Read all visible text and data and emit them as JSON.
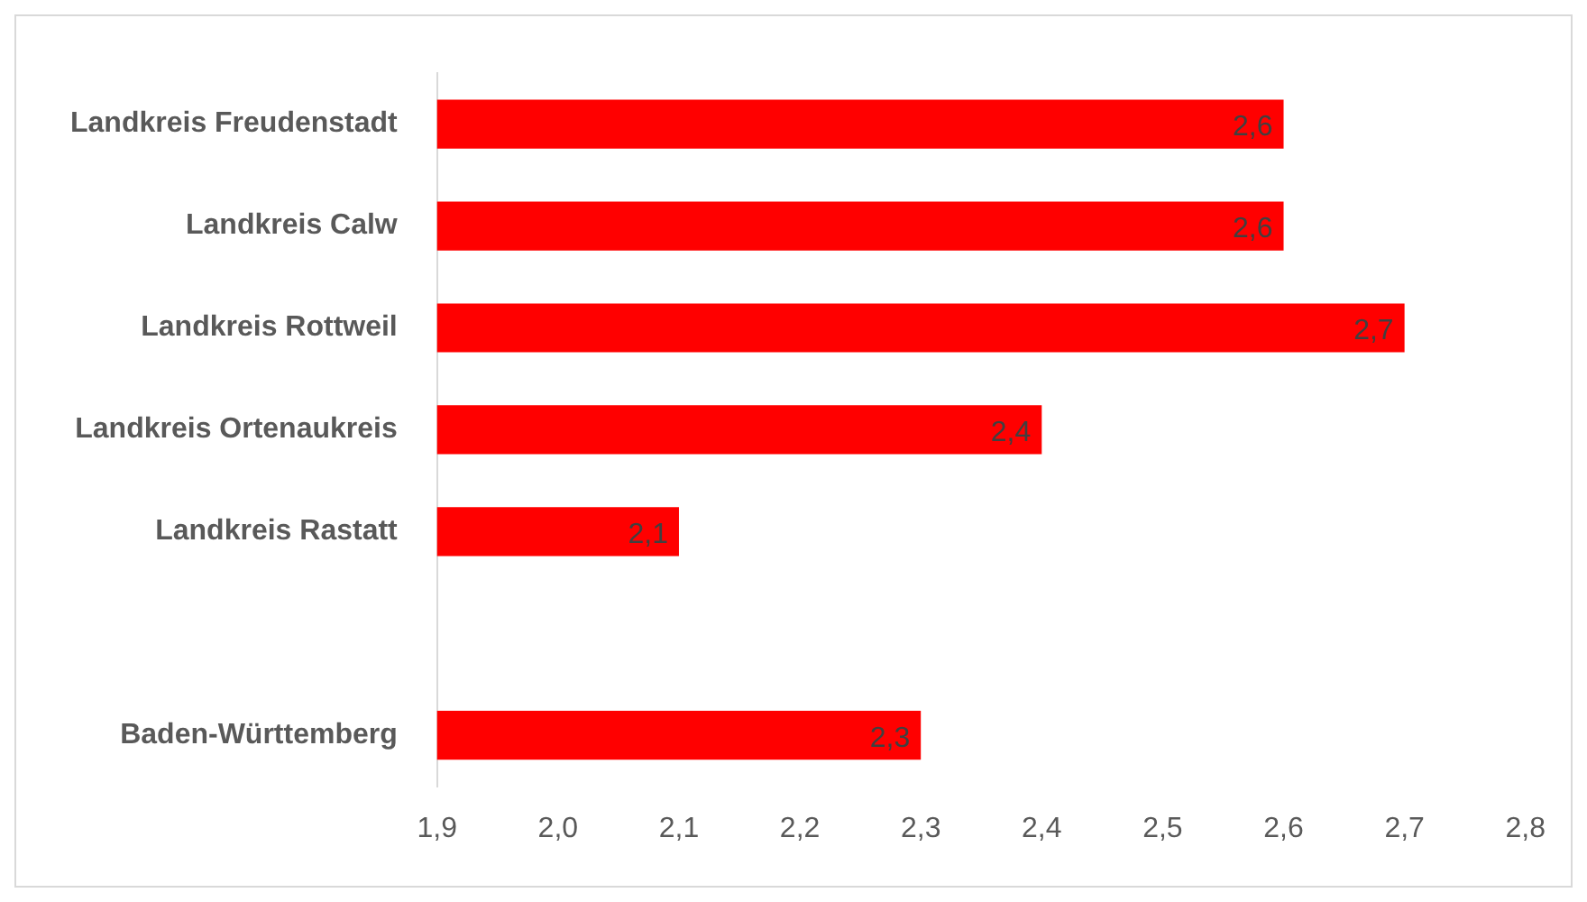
{
  "chart_data": {
    "type": "bar",
    "orientation": "horizontal",
    "categories": [
      "Landkreis Freudenstadt",
      "Landkreis Calw",
      "Landkreis Rottweil",
      "Landkreis Ortenaukreis",
      "Landkreis Rastatt",
      null,
      "Baden-Württemberg"
    ],
    "values": [
      2.6,
      2.6,
      2.7,
      2.4,
      2.1,
      null,
      2.3
    ],
    "value_labels": [
      "2,6",
      "2,6",
      "2,7",
      "2,4",
      "2,1",
      null,
      "2,3"
    ],
    "color": "#ff0000",
    "xlim": [
      1.9,
      2.8
    ],
    "xticks": [
      {
        "value": 1.9,
        "label": "1,9"
      },
      {
        "value": 2.0,
        "label": "2,0"
      },
      {
        "value": 2.1,
        "label": "2,1"
      },
      {
        "value": 2.2,
        "label": "2,2"
      },
      {
        "value": 2.3,
        "label": "2,3"
      },
      {
        "value": 2.4,
        "label": "2,4"
      },
      {
        "value": 2.5,
        "label": "2,5"
      },
      {
        "value": 2.6,
        "label": "2,6"
      },
      {
        "value": 2.7,
        "label": "2,7"
      },
      {
        "value": 2.8,
        "label": "2,8"
      }
    ],
    "legend": false
  }
}
